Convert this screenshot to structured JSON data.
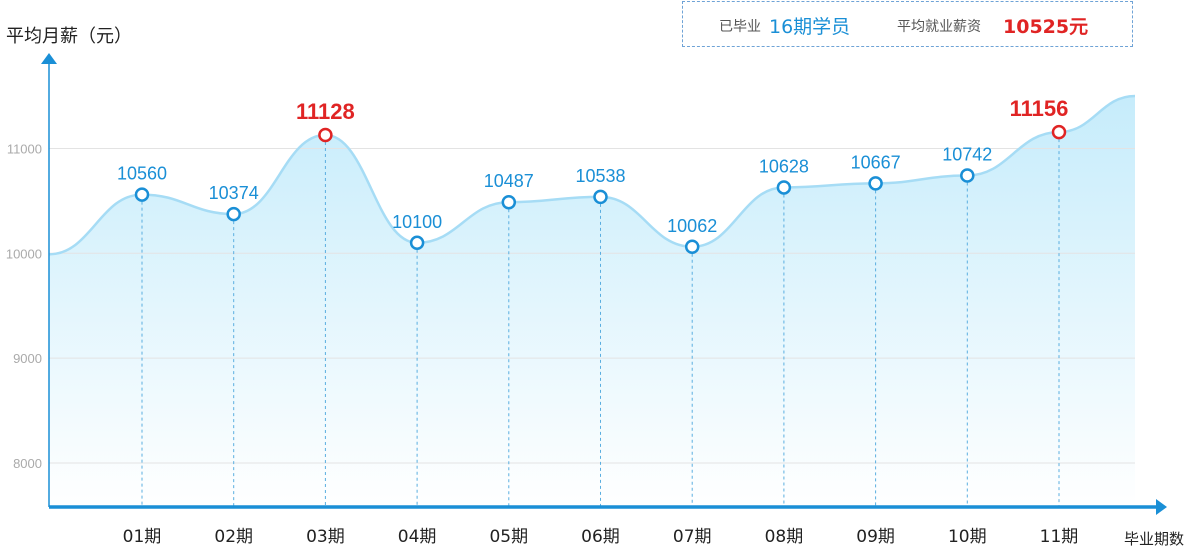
{
  "summary": {
    "graduated_prefix": "已毕业",
    "graduated_count": "16期学员",
    "avg_label": "平均就业薪资",
    "avg_value": "10525元"
  },
  "colors": {
    "line": "#a6dcf5",
    "point": "#1a8fd6",
    "highlight": "#e02424",
    "axis": "#1a8fd6"
  },
  "chart_data": {
    "type": "area",
    "ylabel": "平均月薪（元）",
    "xlabel": "毕业期数",
    "categories": [
      "01期",
      "02期",
      "03期",
      "04期",
      "05期",
      "06期",
      "07期",
      "08期",
      "09期",
      "10期",
      "11期"
    ],
    "series": [
      {
        "values": [
          10560,
          10374,
          11128,
          10100,
          10487,
          10538,
          10062,
          10628,
          10667,
          10742,
          11156
        ]
      }
    ],
    "value_labels": [
      "10560",
      "10374",
      "11128",
      "10100",
      "10487",
      "10538",
      "10062",
      "10628",
      "10667",
      "10742",
      "11156"
    ],
    "highlighted_indices": [
      2,
      10
    ],
    "yticks": [
      8000,
      9000,
      10000,
      11000
    ],
    "ytick_labels": [
      "8000",
      "9000",
      "10000",
      "11000"
    ],
    "ylim": [
      7580,
      11710
    ],
    "line_start_value": 9990,
    "line_end_value": 11500,
    "grid": true
  }
}
